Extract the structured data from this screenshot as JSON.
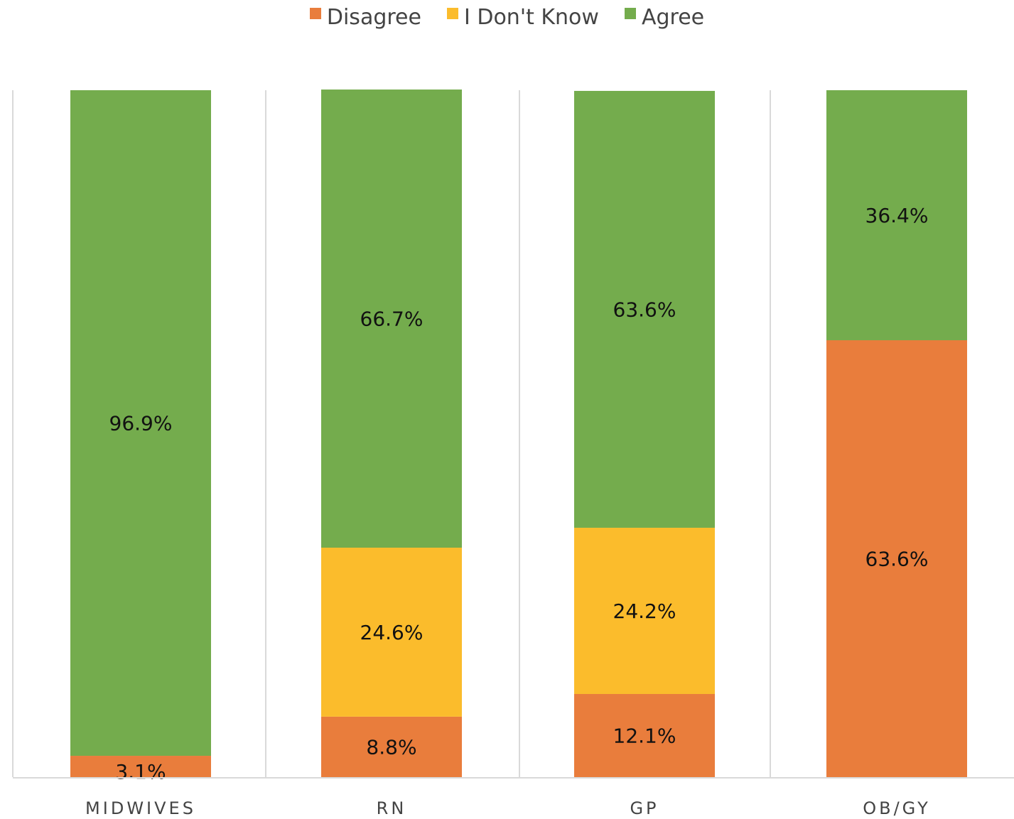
{
  "chart_data": {
    "type": "bar",
    "stacked": true,
    "normalized_percent": true,
    "categories": [
      "MIDWIVES",
      "RN",
      "GP",
      "OB/GY"
    ],
    "series": [
      {
        "name": "Disagree",
        "color": "#E97D3C",
        "values": [
          3.1,
          8.8,
          12.1,
          63.6
        ],
        "labels": [
          "3.1%",
          "8.8%",
          "12.1%",
          "63.6%"
        ]
      },
      {
        "name": "I Don't Know",
        "color": "#FBBC2C",
        "values": [
          0,
          24.6,
          24.2,
          0
        ],
        "labels": [
          "",
          "24.6%",
          "24.2%",
          ""
        ]
      },
      {
        "name": "Agree",
        "color": "#74AC4D",
        "values": [
          96.9,
          66.7,
          63.6,
          36.4
        ],
        "labels": [
          "96.9%",
          "66.7%",
          "63.6%",
          "36.4%"
        ]
      }
    ],
    "ylim": [
      0,
      100
    ],
    "legend_position": "top-center",
    "grid": "vertical separators between categories"
  }
}
